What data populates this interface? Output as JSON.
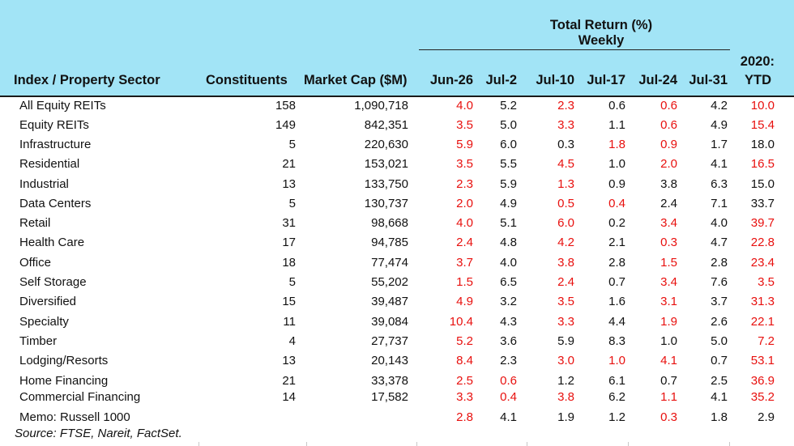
{
  "chart_data": {
    "type": "table",
    "group_header": [
      "Total Return (%)",
      "Weekly"
    ],
    "columns": [
      "Index / Property Sector",
      "Constituents",
      "Market Cap ($M)",
      "Jun-26",
      "Jul-2",
      "Jul-10",
      "Jul-17",
      "Jul-24",
      "Jul-31",
      "2020:",
      "YTD"
    ],
    "rows": [
      {
        "name": "All Equity REITs",
        "constituents": "158",
        "market_cap": "1,090,718",
        "returns": [
          "4.0",
          "5.2",
          "2.3",
          "0.6",
          "0.6",
          "4.2",
          "10.0"
        ],
        "negative": [
          true,
          false,
          true,
          false,
          true,
          false,
          true
        ]
      },
      {
        "name": "Equity REITs",
        "constituents": "149",
        "market_cap": "842,351",
        "returns": [
          "3.5",
          "5.0",
          "3.3",
          "1.1",
          "0.6",
          "4.9",
          "15.4"
        ],
        "negative": [
          true,
          false,
          true,
          false,
          true,
          false,
          true
        ]
      },
      {
        "name": "Infrastructure",
        "constituents": "5",
        "market_cap": "220,630",
        "returns": [
          "5.9",
          "6.0",
          "0.3",
          "1.8",
          "0.9",
          "1.7",
          "18.0"
        ],
        "negative": [
          true,
          false,
          false,
          true,
          true,
          false,
          false
        ]
      },
      {
        "name": "Residential",
        "constituents": "21",
        "market_cap": "153,021",
        "returns": [
          "3.5",
          "5.5",
          "4.5",
          "1.0",
          "2.0",
          "4.1",
          "16.5"
        ],
        "negative": [
          true,
          false,
          true,
          false,
          true,
          false,
          true
        ]
      },
      {
        "name": "Industrial",
        "constituents": "13",
        "market_cap": "133,750",
        "returns": [
          "2.3",
          "5.9",
          "1.3",
          "0.9",
          "3.8",
          "6.3",
          "15.0"
        ],
        "negative": [
          true,
          false,
          true,
          false,
          false,
          false,
          false
        ]
      },
      {
        "name": "Data Centers",
        "constituents": "5",
        "market_cap": "130,737",
        "returns": [
          "2.0",
          "4.9",
          "0.5",
          "0.4",
          "2.4",
          "7.1",
          "33.7"
        ],
        "negative": [
          true,
          false,
          true,
          true,
          false,
          false,
          false
        ]
      },
      {
        "name": "Retail",
        "constituents": "31",
        "market_cap": "98,668",
        "returns": [
          "4.0",
          "5.1",
          "6.0",
          "0.2",
          "3.4",
          "4.0",
          "39.7"
        ],
        "negative": [
          true,
          false,
          true,
          false,
          true,
          false,
          true
        ]
      },
      {
        "name": "Health Care",
        "constituents": "17",
        "market_cap": "94,785",
        "returns": [
          "2.4",
          "4.8",
          "4.2",
          "2.1",
          "0.3",
          "4.7",
          "22.8"
        ],
        "negative": [
          true,
          false,
          true,
          false,
          true,
          false,
          true
        ]
      },
      {
        "name": "Office",
        "constituents": "18",
        "market_cap": "77,474",
        "returns": [
          "3.7",
          "4.0",
          "3.8",
          "2.8",
          "1.5",
          "2.8",
          "23.4"
        ],
        "negative": [
          true,
          false,
          true,
          false,
          true,
          false,
          true
        ]
      },
      {
        "name": "Self Storage",
        "constituents": "5",
        "market_cap": "55,202",
        "returns": [
          "1.5",
          "6.5",
          "2.4",
          "0.7",
          "3.4",
          "7.6",
          "3.5"
        ],
        "negative": [
          true,
          false,
          true,
          false,
          true,
          false,
          true
        ]
      },
      {
        "name": "Diversified",
        "constituents": "15",
        "market_cap": "39,487",
        "returns": [
          "4.9",
          "3.2",
          "3.5",
          "1.6",
          "3.1",
          "3.7",
          "31.3"
        ],
        "negative": [
          true,
          false,
          true,
          false,
          true,
          false,
          true
        ]
      },
      {
        "name": "Specialty",
        "constituents": "11",
        "market_cap": "39,084",
        "returns": [
          "10.4",
          "4.3",
          "3.3",
          "4.4",
          "1.9",
          "2.6",
          "22.1"
        ],
        "negative": [
          true,
          false,
          true,
          false,
          true,
          false,
          true
        ]
      },
      {
        "name": "Timber",
        "constituents": "4",
        "market_cap": "27,737",
        "returns": [
          "5.2",
          "3.6",
          "5.9",
          "8.3",
          "1.0",
          "5.0",
          "7.2"
        ],
        "negative": [
          true,
          false,
          false,
          false,
          false,
          false,
          true
        ]
      },
      {
        "name": "Lodging/Resorts",
        "constituents": "13",
        "market_cap": "20,143",
        "returns": [
          "8.4",
          "2.3",
          "3.0",
          "1.0",
          "4.1",
          "0.7",
          "53.1"
        ],
        "negative": [
          true,
          false,
          true,
          true,
          true,
          false,
          true
        ]
      },
      {
        "name": "Home Financing",
        "constituents": "21",
        "market_cap": "33,378",
        "returns": [
          "2.5",
          "0.6",
          "1.2",
          "6.1",
          "0.7",
          "2.5",
          "36.9"
        ],
        "negative": [
          true,
          true,
          false,
          false,
          false,
          false,
          true
        ]
      },
      {
        "name": "Commercial Financing",
        "constituents": "14",
        "market_cap": "17,582",
        "returns": [
          "3.3",
          "0.4",
          "3.8",
          "6.2",
          "1.1",
          "4.1",
          "35.2"
        ],
        "negative": [
          true,
          true,
          true,
          false,
          true,
          false,
          true
        ]
      },
      {
        "name": "Memo: Russell 1000",
        "constituents": "",
        "market_cap": "",
        "returns": [
          "2.8",
          "4.1",
          "1.9",
          "1.2",
          "0.3",
          "1.8",
          "2.9"
        ],
        "negative": [
          true,
          false,
          false,
          false,
          true,
          false,
          false
        ]
      }
    ],
    "source": "Source: FTSE, Nareit, FactSet.",
    "colors": {
      "header_bg": "#a2e4f6",
      "negative": "#e8100e",
      "positive": "#111111"
    }
  }
}
